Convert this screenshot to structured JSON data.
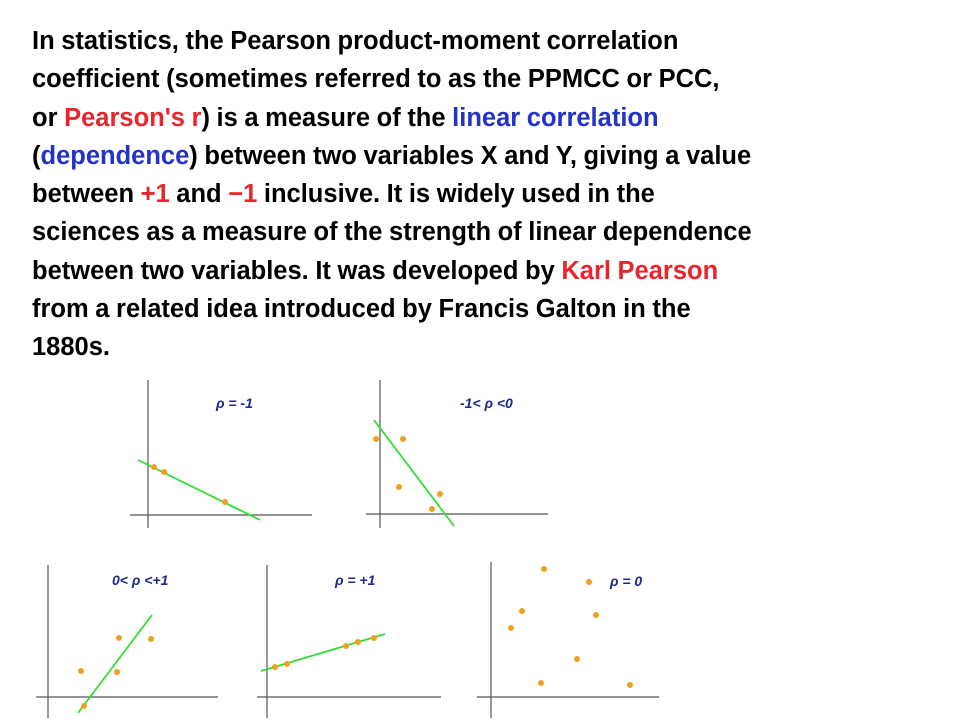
{
  "text": {
    "line1": "In statistics, the Pearson product-moment correlation",
    "line2": "coefficient (sometimes referred to as the PPMCC or PCC,",
    "line3_pre": "or ",
    "line3_red": "Pearson's r",
    "line3_mid": ") is a measure of the ",
    "line3_blue": "linear correlation",
    "line4_open": "(",
    "line4_blue": "dependence",
    "line4_post": ") between two variables X and Y, giving a value",
    "line5_pre": "between ",
    "line5_red1": "+1",
    "line5_mid": " and ",
    "line5_red2": "−1",
    "line5_post": " inclusive. It is widely used in the",
    "line6": "sciences as a measure of the strength of linear dependence",
    "line7_pre": "between two variables. It was developed by ",
    "line7_red": "Karl Pearson",
    "line8": "from a related idea introduced by Francis Galton in the",
    "line9": "1880s."
  },
  "colors": {
    "link_red": "#e8262b",
    "link_blue": "#2332c8",
    "point": "#f0a020",
    "fit_line": "#33dd33",
    "axis": "#555555",
    "label": "#1b2a8c"
  },
  "panels": [
    {
      "label": "ρ = -1"
    },
    {
      "label": "-1< ρ <0"
    },
    {
      "label": "0< ρ <+1"
    },
    {
      "label": "ρ = +1"
    },
    {
      "label": "ρ = 0"
    }
  ]
}
